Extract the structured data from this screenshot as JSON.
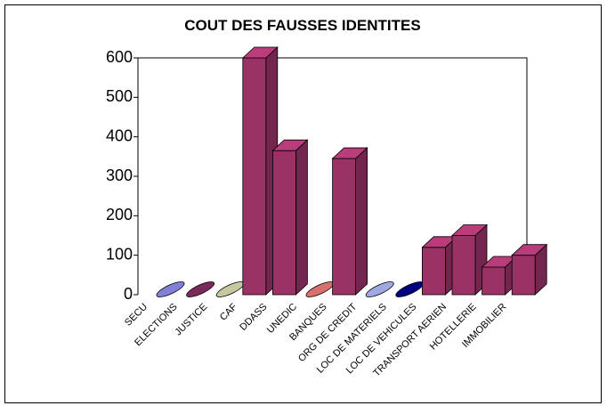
{
  "chart_data": {
    "type": "bar3d",
    "title": "COUT DES FAUSSES IDENTITES",
    "categories": [
      "SECU",
      "ELECTIONS",
      "JUSTICE",
      "CAF",
      "DDASS",
      "UNEDIC",
      "BANQUES",
      "ORG DE CREDIT",
      "LOC DE MATERIELS",
      "LOC DE VEHICULES",
      "TRANSPORT AERIEN",
      "HOTELLERIE",
      "IMMOBILIER"
    ],
    "values": [
      0,
      0,
      0,
      600,
      365,
      0,
      345,
      0,
      0,
      120,
      150,
      70,
      100
    ],
    "colors": [
      "#8080d8",
      "#7a2a5a",
      "#c8c8a0",
      "#993366",
      "#993366",
      "#d87070",
      "#993366",
      "#a0a8e0",
      "#000080",
      "#993366",
      "#993366",
      "#993366",
      "#993366"
    ],
    "ylim": [
      0,
      600
    ],
    "yticks": [
      0,
      100,
      200,
      300,
      400,
      500,
      600
    ],
    "grid": false
  }
}
